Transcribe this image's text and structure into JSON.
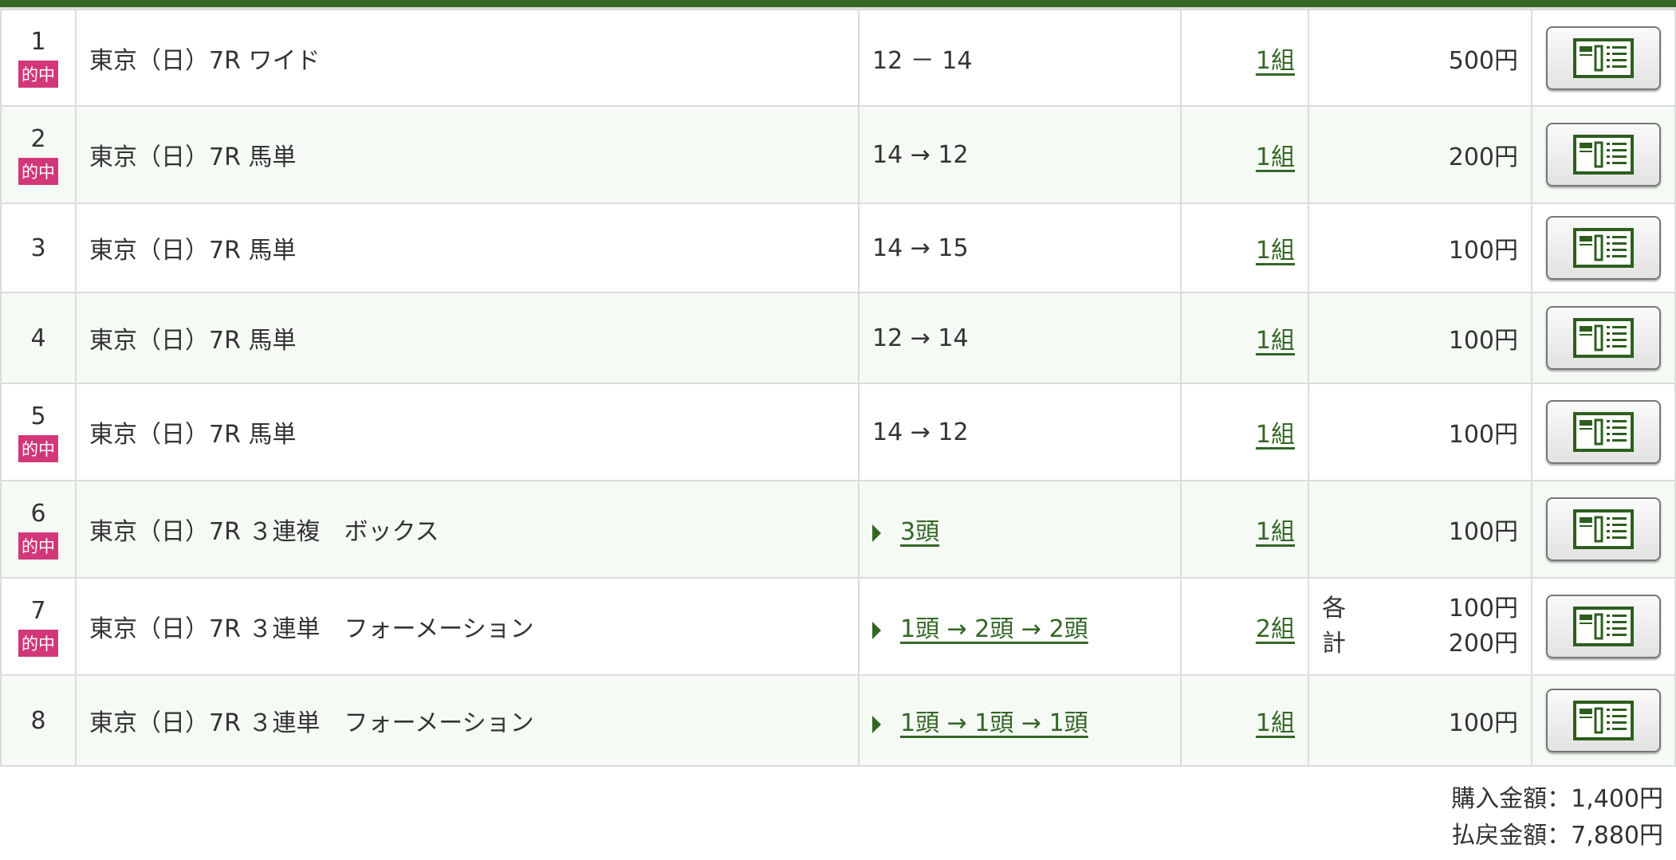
{
  "rows": [
    {
      "no": "1",
      "hit": "的中",
      "race": "東京（日）7R ワイド",
      "combo": "12 － 14",
      "combo_link": false,
      "sets": "1組",
      "amount": "500円"
    },
    {
      "no": "2",
      "hit": "的中",
      "race": "東京（日）7R 馬単",
      "combo": "14 → 12",
      "combo_link": false,
      "sets": "1組",
      "amount": "200円"
    },
    {
      "no": "3",
      "hit": "",
      "race": "東京（日）7R 馬単",
      "combo": "14 → 15",
      "combo_link": false,
      "sets": "1組",
      "amount": "100円"
    },
    {
      "no": "4",
      "hit": "",
      "race": "東京（日）7R 馬単",
      "combo": "12 → 14",
      "combo_link": false,
      "sets": "1組",
      "amount": "100円"
    },
    {
      "no": "5",
      "hit": "的中",
      "race": "東京（日）7R 馬単",
      "combo": "14 → 12",
      "combo_link": false,
      "sets": "1組",
      "amount": "100円"
    },
    {
      "no": "6",
      "hit": "的中",
      "race": "東京（日）7R ３連複　ボックス",
      "combo": "3頭",
      "combo_link": true,
      "sets": "1組",
      "amount": "100円"
    },
    {
      "no": "7",
      "hit": "的中",
      "race": "東京（日）7R ３連単　フォーメーション",
      "combo": "1頭 → 2頭 → 2頭",
      "combo_link": true,
      "sets": "2組",
      "amount_each_label": "各",
      "amount": "100円",
      "total_label": "計",
      "total": "200円"
    },
    {
      "no": "8",
      "hit": "",
      "race": "東京（日）7R ３連単　フォーメーション",
      "combo": "1頭 → 1頭 → 1頭",
      "combo_link": true,
      "sets": "1組",
      "amount": "100円"
    }
  ],
  "totals": {
    "purchase": "購入金額：1,400円",
    "payout": "払戻金額：7,880円"
  },
  "colors": {
    "header": "#346626",
    "hit_badge": "#d23779",
    "link": "#346626"
  },
  "icons": {
    "detail_button": "ticket-detail-icon"
  }
}
